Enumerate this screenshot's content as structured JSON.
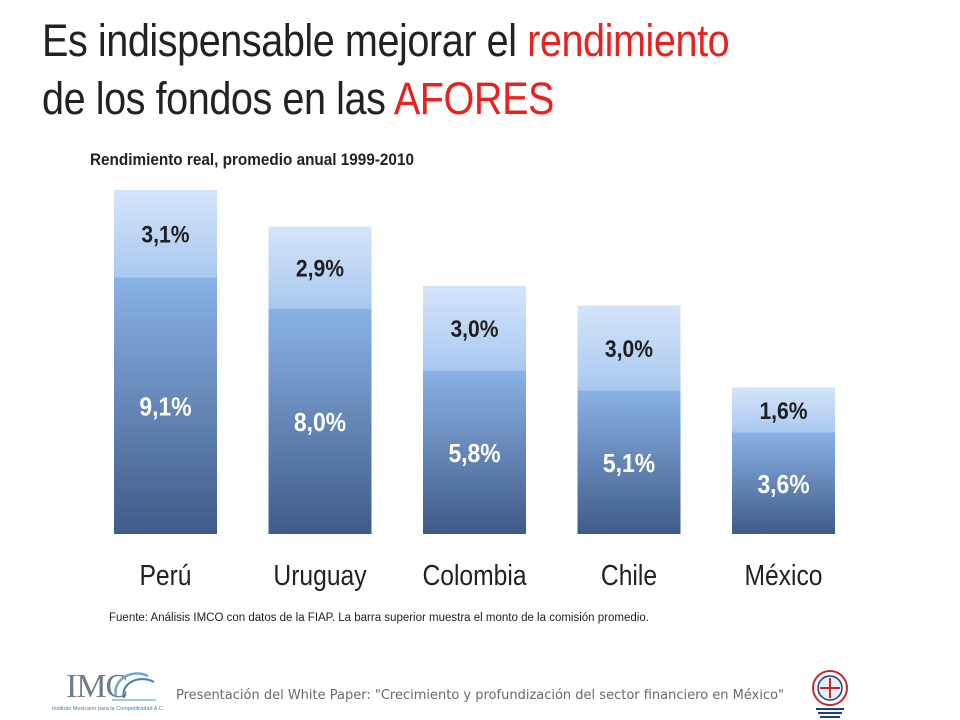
{
  "slide": {
    "title_part1": "Es indispensable mejorar el ",
    "title_highlight1": "rendimiento",
    "title_part2": "de los fondos en las ",
    "title_highlight2": "AFORES",
    "source_note": "Fuente: Análisis IMCO con datos de la FIAP. La barra superior muestra el monto de la comisión promedio.",
    "footer": "Presentación del White Paper: \"Crecimiento y profundización del sector financiero en México\"",
    "logo_left": {
      "text": "IMC",
      "caption": "Instituto Mexicano para la Competitividad A.C."
    },
    "colors": {
      "title_highlight": "#e8231f",
      "bar_bottom": "#4a6a99",
      "bar_top": "#b9d2f3"
    }
  },
  "chart_data": {
    "type": "bar",
    "stacked": true,
    "title": "Rendimiento real, promedio anual 1999-2010",
    "categories": [
      "Perú",
      "Uruguay",
      "Colombia",
      "Chile",
      "México"
    ],
    "series": [
      {
        "values": [
          9.1,
          8.0,
          5.8,
          5.1,
          3.6
        ],
        "labels": [
          "9,1%",
          "8,0%",
          "5,8%",
          "5,1%",
          "3,6%"
        ]
      },
      {
        "values": [
          3.1,
          2.9,
          3.0,
          3.0,
          1.6
        ],
        "labels": [
          "3,1%",
          "2,9%",
          "3,0%",
          "3,0%",
          "1,6%"
        ]
      }
    ],
    "ylim": [
      0,
      12.2
    ],
    "grid": false,
    "legend": "none"
  }
}
